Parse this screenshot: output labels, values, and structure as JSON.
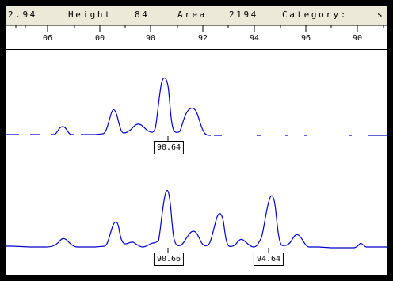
{
  "infobar": {
    "position_partial": "2.94",
    "height_label": "Height",
    "height_value": "84",
    "area_label": "Area",
    "area_value": "2194",
    "category_label": "Category:",
    "category_value": "s"
  },
  "ruler": {
    "ticks": [
      "06",
      "00",
      "90",
      "92",
      "94",
      "96",
      "90"
    ]
  },
  "traces": {
    "top": {
      "color": "#0000cc",
      "peak_label": "90.64"
    },
    "bottom": {
      "color": "#0000cc",
      "peak_labels": [
        "90.66",
        "94.64"
      ]
    }
  }
}
